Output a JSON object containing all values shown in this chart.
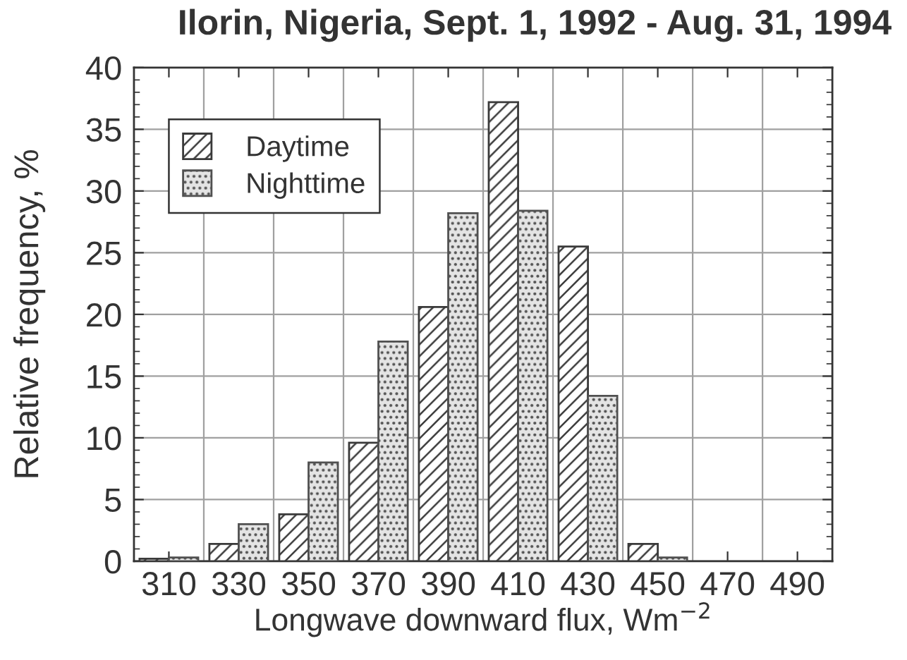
{
  "chart_data": {
    "type": "bar",
    "title": "Ilorin, Nigeria, Sept. 1, 1992 - Aug. 31, 1994",
    "xlabel": "Longwave downward flux, Wm$^{−2}$",
    "ylabel": "Relative frequency, %",
    "categories": [
      "310",
      "330",
      "350",
      "370",
      "390",
      "410",
      "430",
      "450",
      "470",
      "490"
    ],
    "series": [
      {
        "name": "Daytime",
        "color": "#3a3a3a",
        "values": [
          0.2,
          1.4,
          3.8,
          9.6,
          20.6,
          37.2,
          25.5,
          1.4,
          null,
          null
        ]
      },
      {
        "name": "Nighttime",
        "color": "#505050",
        "values": [
          0.3,
          3.0,
          8.0,
          17.8,
          28.2,
          28.4,
          13.4,
          0.3,
          null,
          null
        ]
      }
    ],
    "ylim": [
      0,
      40
    ],
    "yticks": [
      0,
      5,
      10,
      15,
      20,
      25,
      30,
      35,
      40
    ],
    "grid": true,
    "legend": "top left"
  }
}
